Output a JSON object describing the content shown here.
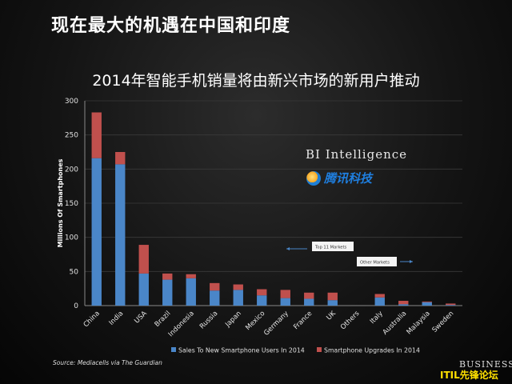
{
  "slide_title": "现在最大的机遇在中国和印度",
  "chart_title": "2014年智能手机销量将由新兴市场的新用户推动",
  "brand_bi": "BI Intelligence",
  "brand_tencent": "腾讯科技",
  "source": "Source: Mediacells via The Guardian",
  "business_logo": "BUSINESS",
  "forum_watermark": "ITIL先锋论坛",
  "annotations": {
    "top11": "Top 11 Markets",
    "others": "Other Markets"
  },
  "colors": {
    "new_users": "#4a86c8",
    "upgrades": "#c0504d",
    "background": "#141414"
  },
  "chart_data": {
    "type": "bar",
    "stacked": true,
    "ylabel": "Millions Of Smartphones",
    "xlabel": "",
    "ylim": [
      0,
      300
    ],
    "yticks": [
      0,
      50,
      100,
      150,
      200,
      250,
      300
    ],
    "categories": [
      "China",
      "India",
      "USA",
      "Brazil",
      "Indonesia",
      "Russia",
      "Japan",
      "Mexico",
      "Germany",
      "France",
      "UK",
      "Others",
      "Italy",
      "Australia",
      "Malaysia",
      "Sweden"
    ],
    "series": [
      {
        "name": "Sales To New Smartphone Users In 2014",
        "values": [
          216,
          207,
          47,
          38,
          40,
          22,
          23,
          15,
          11,
          10,
          8,
          0,
          12,
          2,
          5,
          1
        ]
      },
      {
        "name": "Smartphone Upgrades In 2014",
        "values": [
          67,
          18,
          42,
          9,
          6,
          11,
          8,
          9,
          12,
          9,
          11,
          0,
          5,
          5,
          1,
          2
        ]
      }
    ],
    "grid": true,
    "legend": "bottom"
  }
}
